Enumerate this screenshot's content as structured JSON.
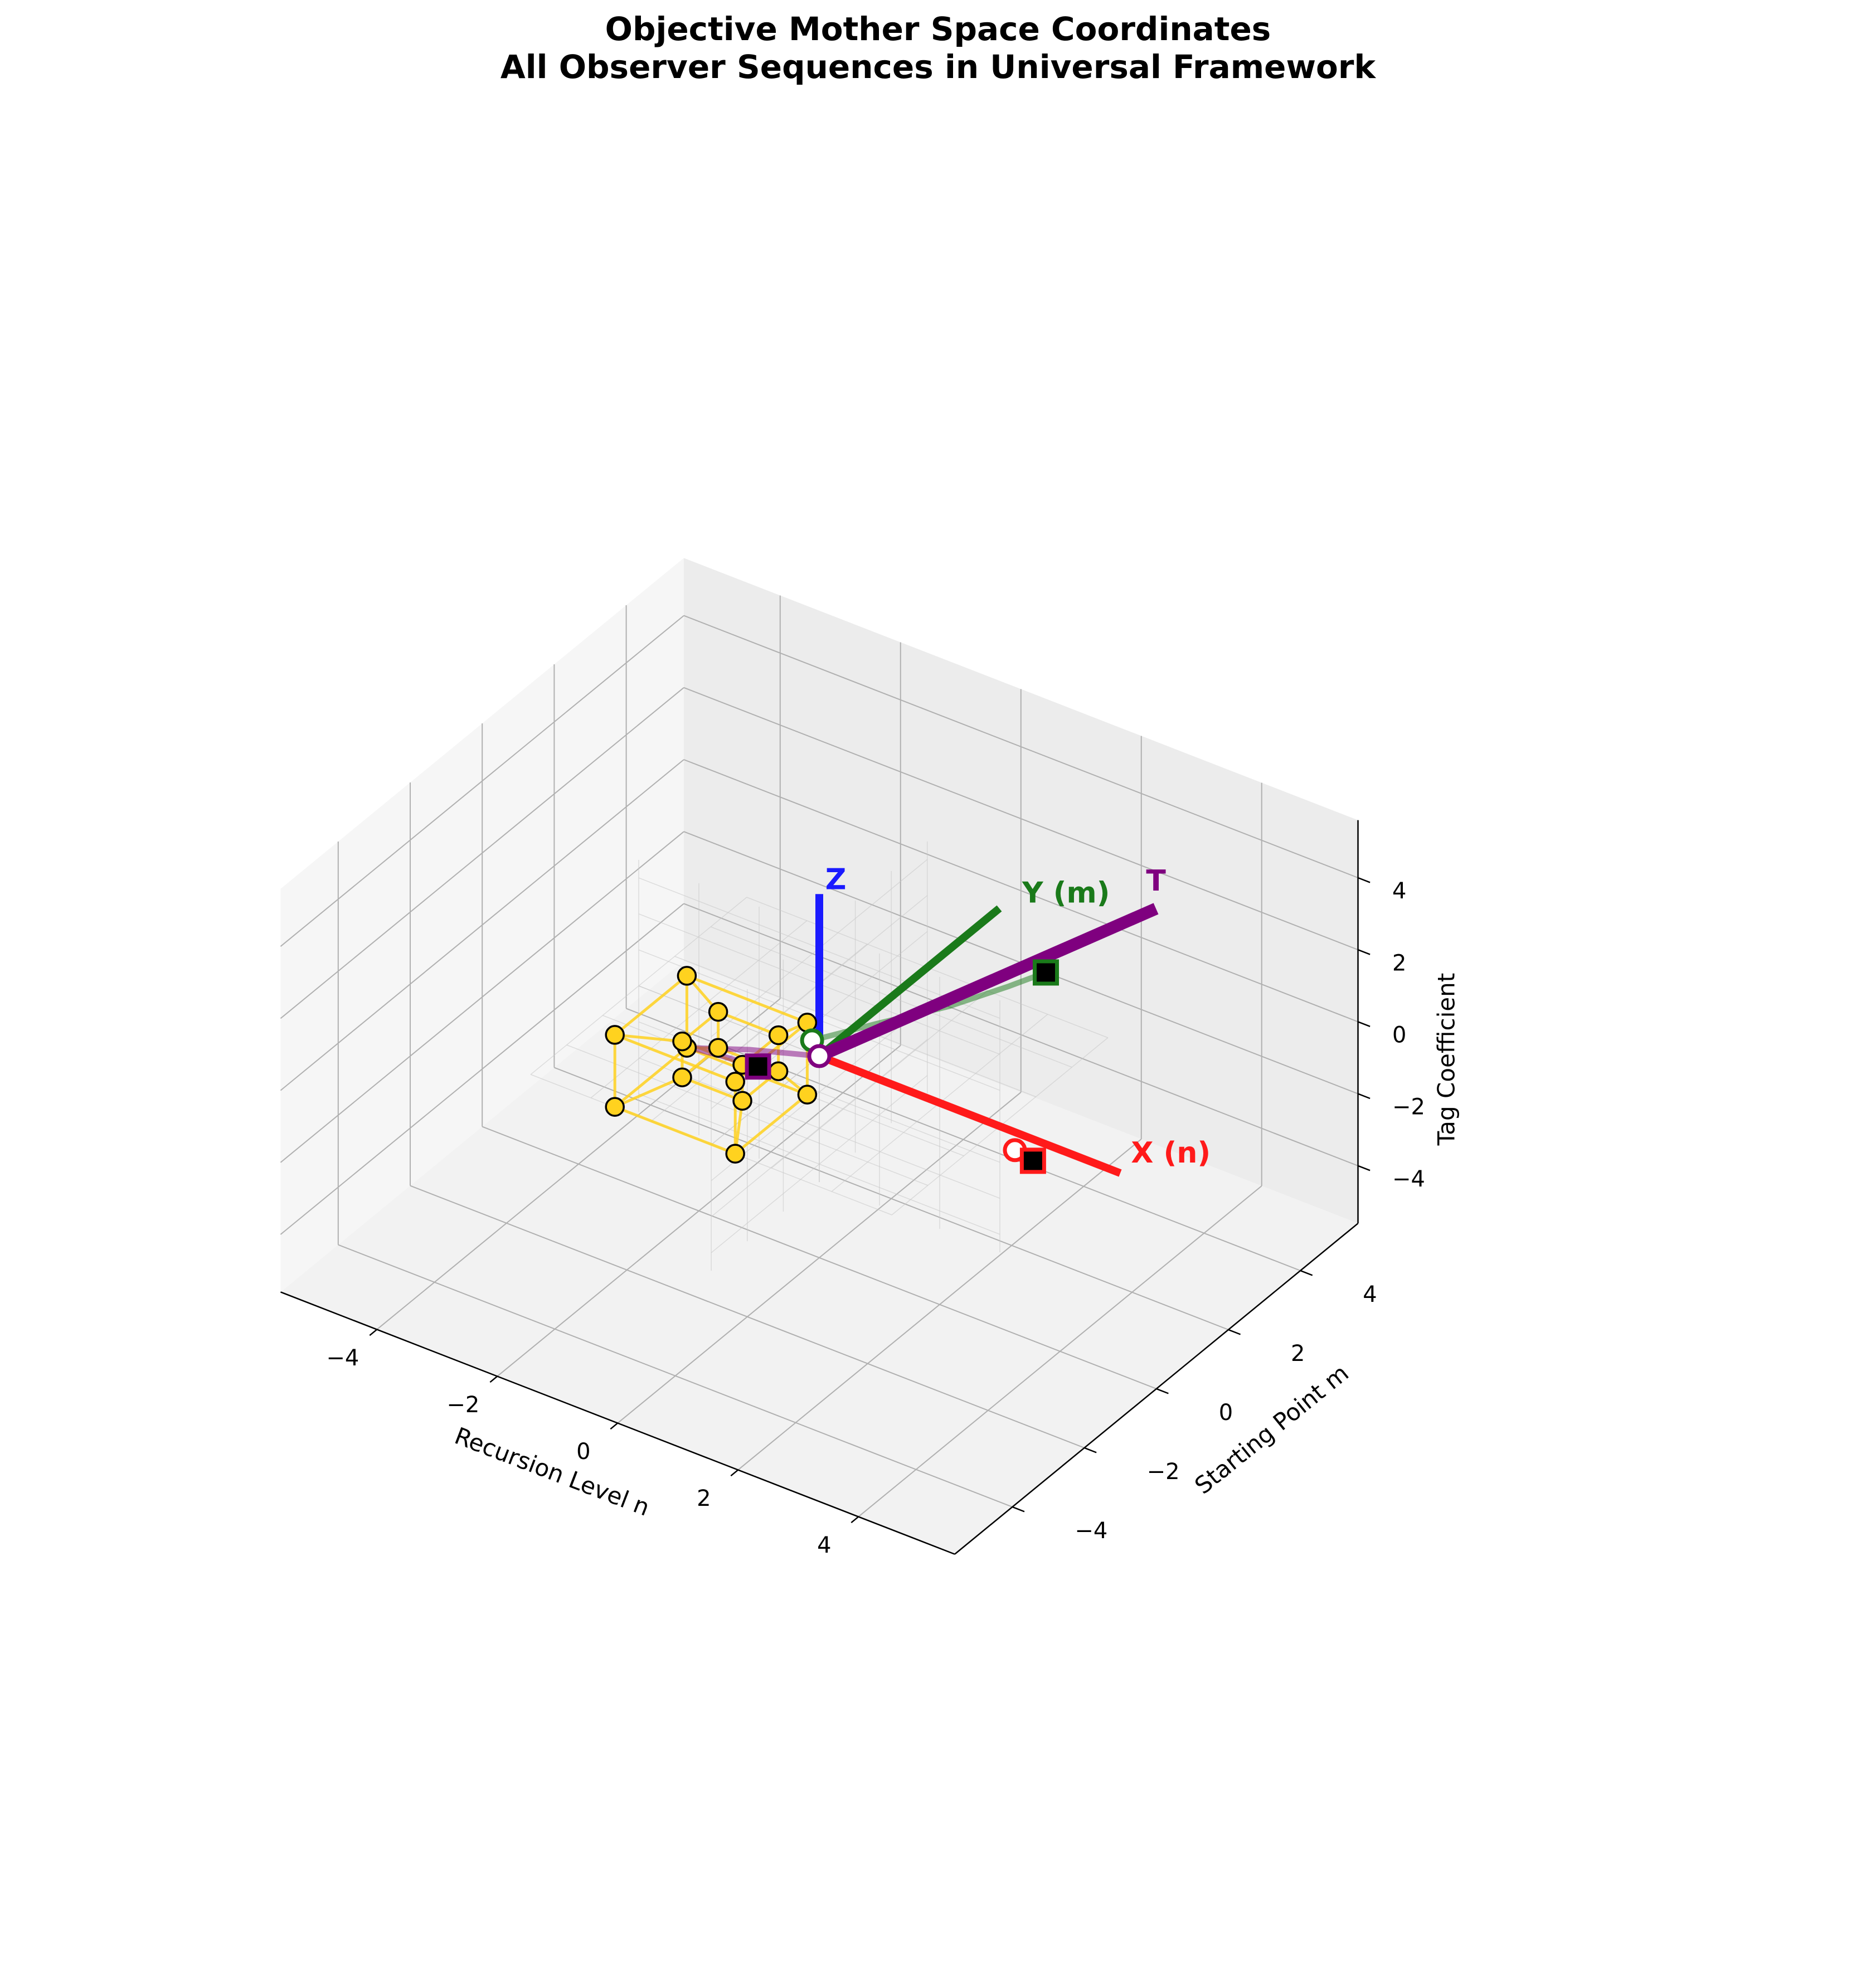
{
  "title_line1": "Objective Mother Space Coordinates",
  "title_line2": "All Observer Sequences in Universal Framework",
  "chart_data": {
    "type": "scatter",
    "projection": "3d",
    "title": "Objective Mother Space Coordinates\nAll Observer Sequences in Universal Framework",
    "xlabel": "Recursion Level n",
    "ylabel": "Starting Point m",
    "zlabel": "Tag Coefficient",
    "xlim": [
      -5,
      5
    ],
    "ylim": [
      -5,
      5
    ],
    "zlim": [
      -5,
      5
    ],
    "xticks": [
      "−4",
      "−2",
      "0",
      "2",
      "4"
    ],
    "yticks": [
      "−4",
      "−2",
      "0",
      "2",
      "4"
    ],
    "zticks": [
      "−4",
      "−2",
      "0",
      "2",
      "4"
    ],
    "grid": true,
    "axis_vectors": [
      {
        "label": "X (n)",
        "color": "#ff1a1a",
        "from": [
          0,
          0,
          0
        ],
        "to": [
          5,
          0,
          0
        ]
      },
      {
        "label": "Y (m)",
        "color": "#1a7a1a",
        "from": [
          0,
          0,
          0
        ],
        "to": [
          0,
          5,
          0
        ]
      },
      {
        "label": "Z",
        "color": "#1a1aff",
        "from": [
          0,
          0,
          0
        ],
        "to": [
          0,
          0,
          4.5
        ]
      },
      {
        "label": "T",
        "color": "#7f007f",
        "from": [
          0,
          0,
          0
        ],
        "to": [
          3.5,
          3.5,
          3.5
        ]
      }
    ],
    "series": [
      {
        "color": "#ff1a1a",
        "start": [
          3.25,
          0,
          -0.5
        ],
        "end": [
          3.55,
          0,
          -0.6
        ]
      },
      {
        "color": "#1a7a1a",
        "start": [
          0,
          -0.2,
          0.6
        ],
        "end": [
          1.85,
          3.2,
          0.9
        ]
      },
      {
        "color": "#7f007f",
        "start": [
          0,
          0,
          0
        ],
        "end": [
          -0.3,
          -1.2,
          0.5
        ]
      }
    ],
    "tesseract": {
      "color": "#ffd21f",
      "outer_size": 1.0,
      "inner_size": 0.5,
      "vertex_count": 16
    }
  }
}
